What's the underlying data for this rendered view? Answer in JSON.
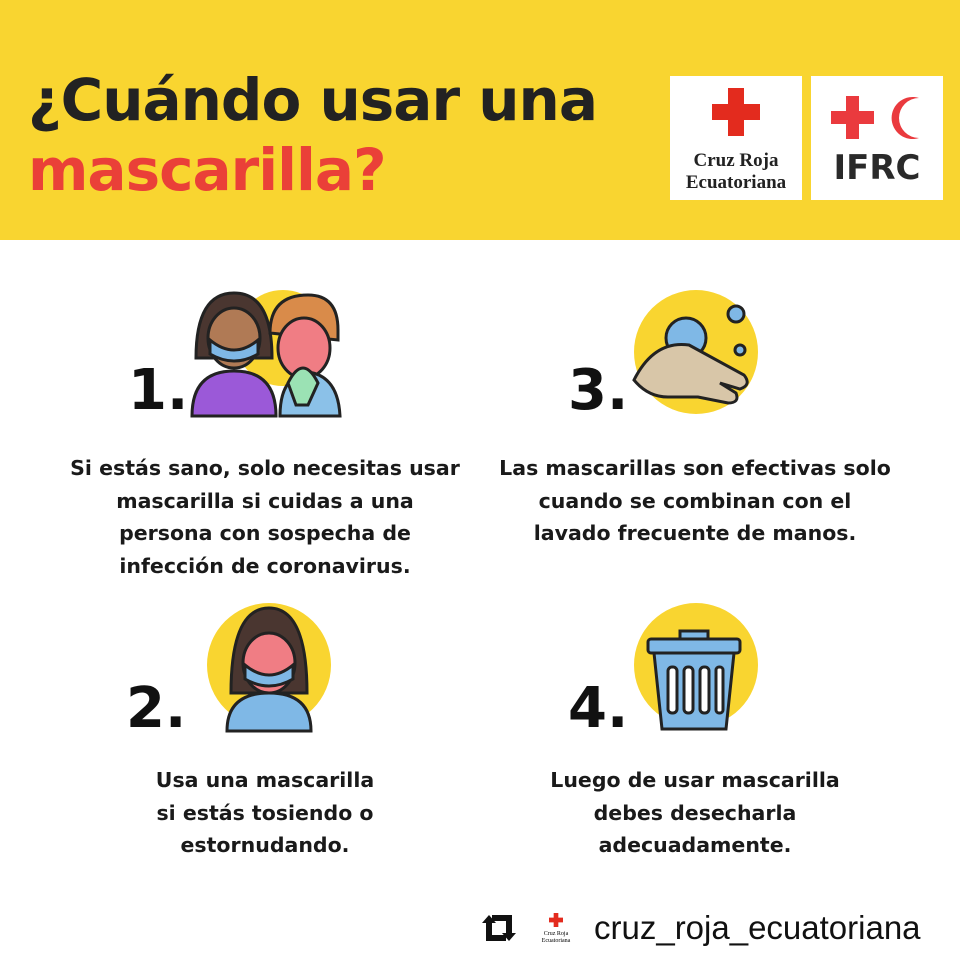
{
  "header": {
    "title_line1": "¿Cuándo usar una",
    "title_line2": "mascarilla?",
    "logos": [
      {
        "name": "Cruz Roja Ecuatoriana",
        "line1": "Cruz Roja",
        "line2": "Ecuatoriana"
      },
      {
        "name": "IFRC",
        "text": "IFRC"
      }
    ]
  },
  "colors": {
    "yellow": "#f9d530",
    "red": "#ea4038",
    "text": "#1a1a1a"
  },
  "items": [
    {
      "number": "1.",
      "icon": "healthy-person-caring-for-sick-icon",
      "lines": [
        "Si estás sano, solo necesitas usar",
        "mascarilla si cuidas a una",
        "persona con sospecha de",
        "infección de coronavirus."
      ]
    },
    {
      "number": "2.",
      "icon": "person-wearing-mask-icon",
      "lines": [
        "Usa una mascarilla",
        "si estás tosiendo o",
        "estornudando."
      ]
    },
    {
      "number": "3.",
      "icon": "hand-washing-icon",
      "lines": [
        "Las mascarillas son efectivas solo",
        "cuando se combinan con el",
        "lavado frecuente de manos."
      ]
    },
    {
      "number": "4.",
      "icon": "trash-bin-icon",
      "lines": [
        "Luego de usar mascarilla",
        "debes desecharla",
        "adecuadamente."
      ]
    }
  ],
  "footer": {
    "icon": "repost-icon",
    "logo_line1": "Cruz Roja",
    "logo_line2": "Ecuatoriana",
    "handle": "cruz_roja_ecuatoriana"
  }
}
